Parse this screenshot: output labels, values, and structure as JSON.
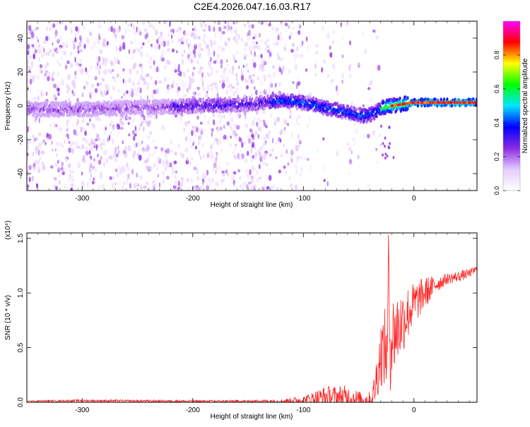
{
  "title": "C2E4.2026.047.16.03.R17",
  "chart_data": [
    {
      "type": "heatmap",
      "name": "spectrogram",
      "xlabel": "Height of straight line (km)",
      "ylabel": "Frequency (Hz)",
      "xlim": [
        -350,
        57
      ],
      "ylim": [
        -50,
        50
      ],
      "xticks": [
        -300,
        -200,
        -100,
        0
      ],
      "xtick_labels": [
        "-300",
        "-200",
        "-100",
        "0"
      ],
      "yticks": [
        -40,
        -20,
        0,
        20,
        40
      ],
      "ytick_labels": [
        "-40",
        "-20",
        "0",
        "20",
        "40"
      ],
      "colorbar": {
        "label": "Normalized spectral amplitude",
        "range": [
          0,
          1
        ],
        "ticks": [
          0.0,
          0.2,
          0.4,
          0.6,
          0.8
        ],
        "tick_labels": [
          "0.0",
          "0.2",
          "0.4",
          "0.6",
          "0.8"
        ],
        "colormap": [
          "#ffffff",
          "#e6ccff",
          "#8a2be2",
          "#0000ff",
          "#00e5ff",
          "#00ff00",
          "#ffff00",
          "#ff0000",
          "#ff00ff"
        ]
      },
      "center_track": {
        "x": [
          -350,
          -300,
          -250,
          -200,
          -150,
          -120,
          -100,
          -80,
          -60,
          -45,
          -35,
          -28,
          -20,
          -10,
          0,
          20,
          57
        ],
        "freq": [
          -2,
          -2,
          -1,
          0,
          1,
          3,
          2,
          -1,
          -4,
          -6,
          -4,
          -1,
          0,
          1,
          2,
          2,
          2
        ]
      },
      "scatter_density": {
        "x_ranges": [
          [
            -350,
            -130
          ],
          [
            -130,
            -100
          ],
          [
            -100,
            -30
          ]
        ],
        "levels": [
          "dense",
          "sparse",
          "very-sparse"
        ]
      }
    },
    {
      "type": "line",
      "name": "snr",
      "xlabel": "Height of straight line (km)",
      "ylabel": "SNR (10 * v/v)",
      "scale_label": "(x10⁴)",
      "xlim": [
        -350,
        57
      ],
      "ylim": [
        0,
        1.55
      ],
      "xticks": [
        -300,
        -200,
        -100,
        0
      ],
      "xtick_labels": [
        "-300",
        "-200",
        "-100",
        "0"
      ],
      "yticks": [
        0.0,
        0.5,
        1.0,
        1.5
      ],
      "ytick_labels": [
        "0.0",
        "0.5",
        "1.0",
        "1.5"
      ],
      "color": "#ff0000",
      "series": [
        {
          "name": "SNR envelope",
          "x": [
            -350,
            -300,
            -200,
            -150,
            -120,
            -100,
            -80,
            -60,
            -45,
            -38,
            -35,
            -30,
            -25,
            -22,
            -20,
            -10,
            0,
            10,
            20,
            30,
            40,
            50,
            57
          ],
          "baseline": [
            0.01,
            0.015,
            0.01,
            0.01,
            0.01,
            0.02,
            0.05,
            0.04,
            0.02,
            0.03,
            0.15,
            0.45,
            0.5,
            0.55,
            0.6,
            0.75,
            0.9,
            1.0,
            1.08,
            1.13,
            1.15,
            1.18,
            1.22
          ],
          "amplitude": [
            0.005,
            0.01,
            0.01,
            0.01,
            0.02,
            0.04,
            0.1,
            0.12,
            0.06,
            0.08,
            0.18,
            0.3,
            0.4,
            0.5,
            0.4,
            0.3,
            0.2,
            0.15,
            0.08,
            0.05,
            0.05,
            0.04,
            0.03
          ]
        }
      ],
      "spike": {
        "x": -23,
        "peak": 1.58
      }
    }
  ]
}
